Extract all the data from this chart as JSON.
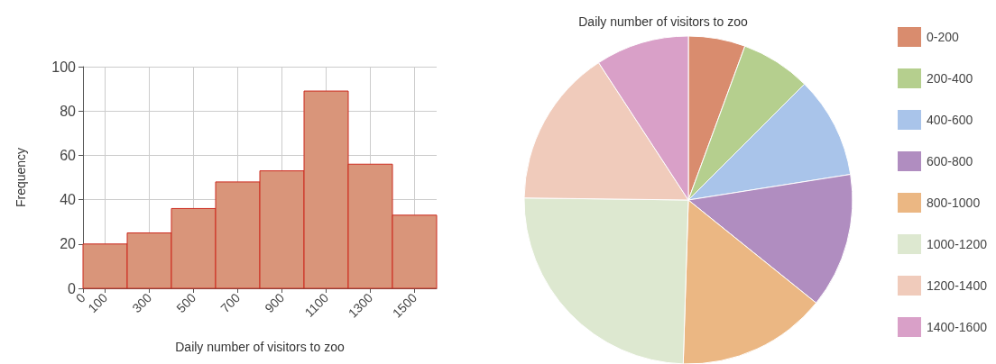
{
  "chart_data": [
    {
      "type": "histogram",
      "xlabel": "Daily number of visitors to zoo",
      "ylabel": "Frequency",
      "bins": [
        0,
        200,
        400,
        600,
        800,
        1000,
        1200,
        1400,
        1600
      ],
      "values": [
        20,
        25,
        36,
        48,
        53,
        89,
        56,
        33
      ],
      "color": "#d9957a",
      "xlim": [
        0,
        1600
      ],
      "xticks": [
        0,
        100,
        300,
        500,
        700,
        900,
        1100,
        1300,
        1500
      ],
      "ylim": [
        0,
        100
      ],
      "yticks": [
        0,
        20,
        40,
        60,
        80,
        100
      ],
      "grid": true
    },
    {
      "type": "pie",
      "title": "Daily number of visitors to zoo",
      "categories": [
        "0-200",
        "200-400",
        "400-600",
        "600-800",
        "800-1000",
        "1000-1200",
        "1200-1400",
        "1400-1600"
      ],
      "values": [
        5.6,
        6.9,
        10,
        13.3,
        14.7,
        24.7,
        15.6,
        9.2
      ],
      "colors": [
        "#d98c6e",
        "#b5cf8e",
        "#a9c4ea",
        "#b08dc0",
        "#ebb783",
        "#dde8d0",
        "#f0cbbb",
        "#d9a0c8"
      ],
      "legend": "right"
    }
  ]
}
